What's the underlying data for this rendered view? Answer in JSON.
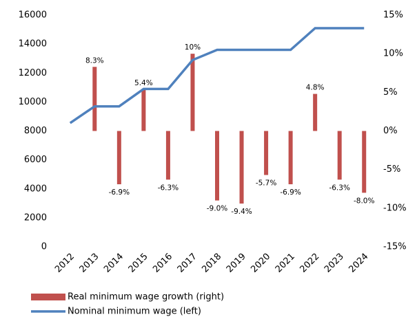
{
  "chart_data": {
    "type": "bar+line",
    "categories": [
      "2012",
      "2013",
      "2014",
      "2015",
      "2016",
      "2017",
      "2018",
      "2019",
      "2020",
      "2021",
      "2022",
      "2023",
      "2024"
    ],
    "series": [
      {
        "name": "Real minimum wage growth (right)",
        "type": "bar",
        "axis": "y2",
        "color": "#c0504d",
        "values": [
          null,
          8.3,
          -6.9,
          5.4,
          -6.3,
          10,
          -9.0,
          -9.4,
          -5.7,
          -6.9,
          4.8,
          -6.3,
          -8.0
        ],
        "value_labels": [
          null,
          "8.3%",
          "-6.9%",
          "5.4%",
          "-6.3%",
          "10%",
          "-9.0%",
          "-9.4%",
          "-5.7%",
          "-6.9%",
          "4.8%",
          "-6.3%",
          "-8.0%"
        ]
      },
      {
        "name": "Nominal minimum wage (left)",
        "type": "line",
        "axis": "y",
        "color": "#4f81bd",
        "values": [
          8550,
          9700,
          9700,
          10900,
          10900,
          12900,
          13600,
          13600,
          13600,
          13600,
          15100,
          15100,
          15100
        ]
      }
    ],
    "ylim": [
      0,
      16000
    ],
    "yticks": [
      0,
      2000,
      4000,
      6000,
      8000,
      10000,
      12000,
      14000,
      16000
    ],
    "y2lim": [
      -15,
      15
    ],
    "y2ticks": [
      {
        "value": -15,
        "label": "-15%"
      },
      {
        "value": -10,
        "label": "-10%"
      },
      {
        "value": -5,
        "label": "-5%"
      },
      {
        "value": 0,
        "label": "0%"
      },
      {
        "value": 5,
        "label": "5%"
      },
      {
        "value": 10,
        "label": "10%"
      },
      {
        "value": 15,
        "label": "15%"
      }
    ],
    "legend": "bottom"
  }
}
